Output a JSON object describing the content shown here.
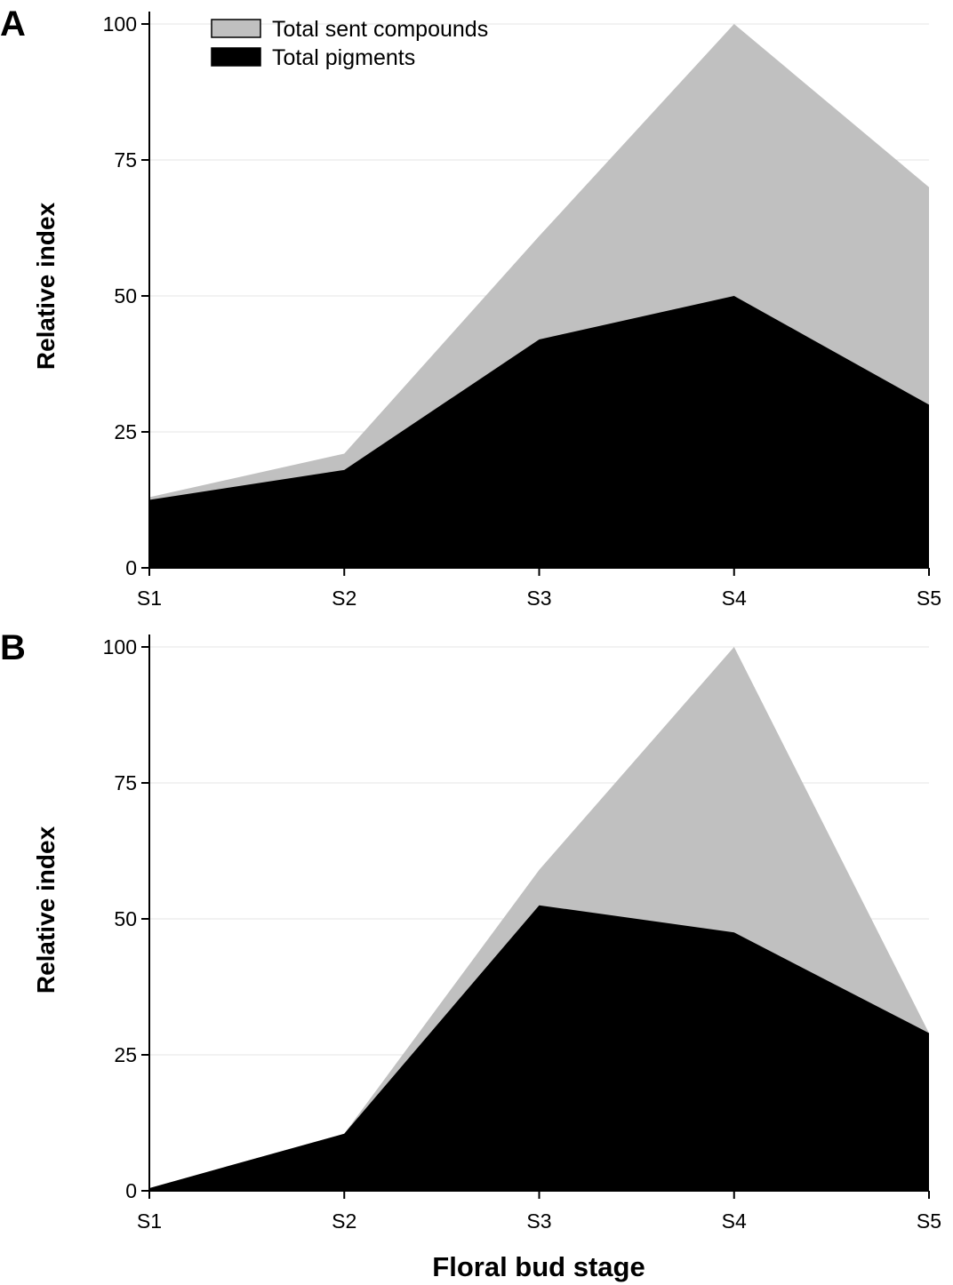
{
  "colors": {
    "scent": "#c0c0c0",
    "pigment": "#000000",
    "axis": "#000000",
    "grid": "#e6e6e6"
  },
  "legend": {
    "placement": "top-left",
    "scent_label": "Total sent compounds",
    "pigment_label": "Total pigments"
  },
  "chart_data": [
    {
      "panel": "A",
      "type": "area",
      "categories": [
        "S1",
        "S2",
        "S3",
        "S4",
        "S5"
      ],
      "series": [
        {
          "name": "Total sent compounds",
          "values": [
            13,
            21,
            61,
            100,
            70
          ]
        },
        {
          "name": "Total pigments",
          "values": [
            12.5,
            18,
            42,
            50,
            30
          ]
        }
      ],
      "xlabel": "",
      "ylabel": "Relative index",
      "ylim": [
        0,
        100
      ],
      "yticks": [
        "0",
        "25",
        "50",
        "75",
        "100"
      ],
      "legend": true
    },
    {
      "panel": "B",
      "type": "area",
      "categories": [
        "S1",
        "S2",
        "S3",
        "S4",
        "S5"
      ],
      "series": [
        {
          "name": "Total sent compounds",
          "values": [
            0.5,
            10.5,
            59,
            100,
            29
          ]
        },
        {
          "name": "Total pigments",
          "values": [
            0.5,
            10.5,
            52.5,
            47.5,
            29
          ]
        }
      ],
      "xlabel": "Floral bud stage",
      "ylabel": "Relative index",
      "ylim": [
        0,
        100
      ],
      "yticks": [
        "0",
        "25",
        "50",
        "75",
        "100"
      ],
      "legend": false
    }
  ]
}
